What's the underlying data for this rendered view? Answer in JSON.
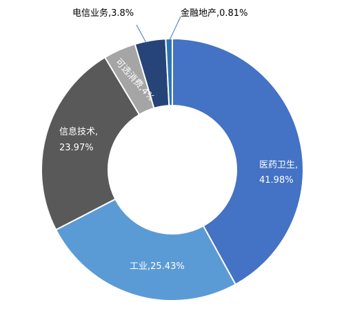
{
  "chart_data": {
    "type": "pie",
    "donut": true,
    "title": "",
    "series": [
      {
        "name": "",
        "slices": [
          {
            "label": "医药卫生",
            "value": 41.98,
            "value_text": "41.98%",
            "color": "#4472c4"
          },
          {
            "label": "工业",
            "value": 25.43,
            "value_text": "25.43%",
            "color": "#5b9bd5"
          },
          {
            "label": "信息技术",
            "value": 23.97,
            "value_text": "23.97%",
            "color": "#595959"
          },
          {
            "label": "可选消费",
            "value": 4.0,
            "value_text": "4%",
            "color": "#a5a5a5"
          },
          {
            "label": "电信业务",
            "value": 3.8,
            "value_text": "3.8%",
            "color": "#264478"
          },
          {
            "label": "金融地产",
            "value": 0.81,
            "value_text": "0.81%",
            "color": "#2e75b6"
          }
        ]
      }
    ],
    "labels": {
      "medical": {
        "line1": "医药卫生,",
        "line2": "41.98%"
      },
      "industry": "工业,25.43%",
      "it": {
        "line1": "信息技术,",
        "line2": "23.97%"
      },
      "consumer": "可选消费,4%",
      "telecom": "电信业务,3.8%",
      "finance": "金融地产,0.81%"
    },
    "label_color_inside": "#ffffff",
    "label_color_outside": "#000000",
    "leader_color": "#4472c4",
    "border_color": "#ffffff"
  }
}
